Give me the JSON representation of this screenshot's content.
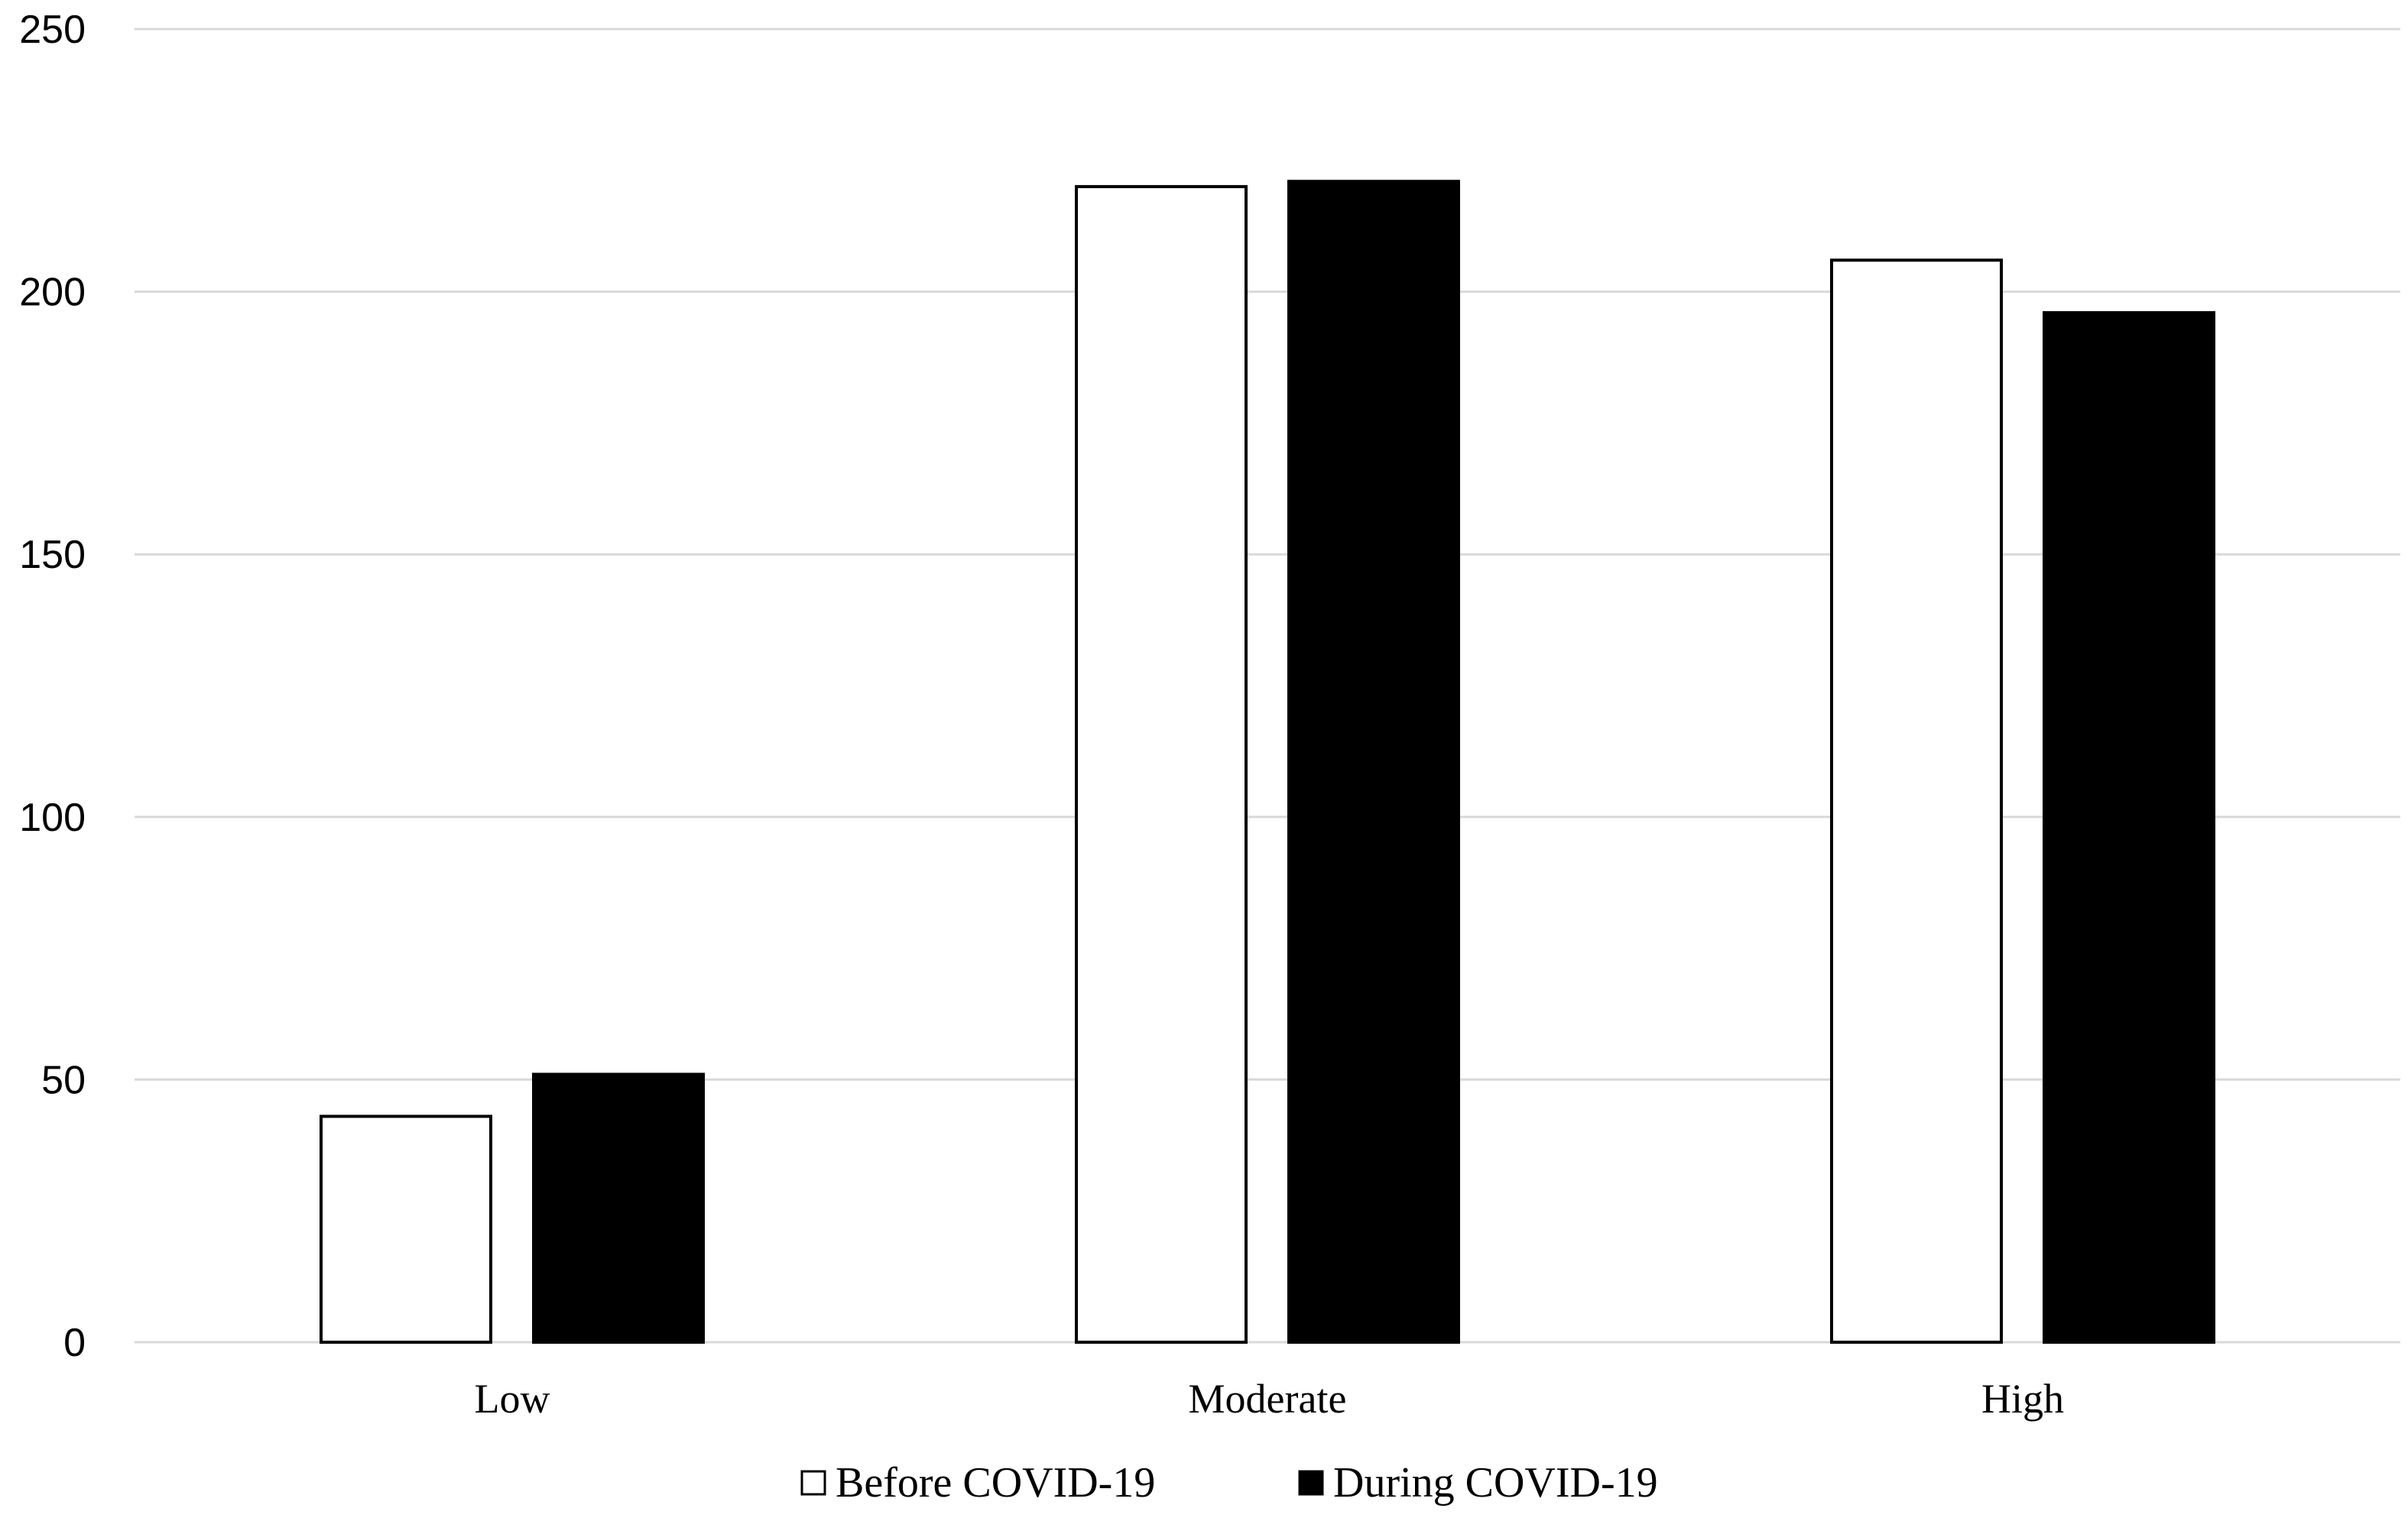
{
  "chart_data": {
    "type": "bar",
    "categories": [
      "Low",
      "Moderate",
      "High"
    ],
    "series": [
      {
        "name": "Before COVID-19",
        "values": [
          43,
          220,
          206
        ],
        "color": "#ffffff",
        "stroke": "#000000"
      },
      {
        "name": "During COVID-19",
        "values": [
          51,
          221,
          196
        ],
        "color": "#000000",
        "stroke": "#000000"
      }
    ],
    "yticks": [
      "0",
      "50",
      "100",
      "150",
      "200",
      "250"
    ],
    "ylim": [
      0,
      250
    ],
    "grid": true,
    "gridline_color": "#d9d9d9",
    "legend_position": "bottom"
  }
}
